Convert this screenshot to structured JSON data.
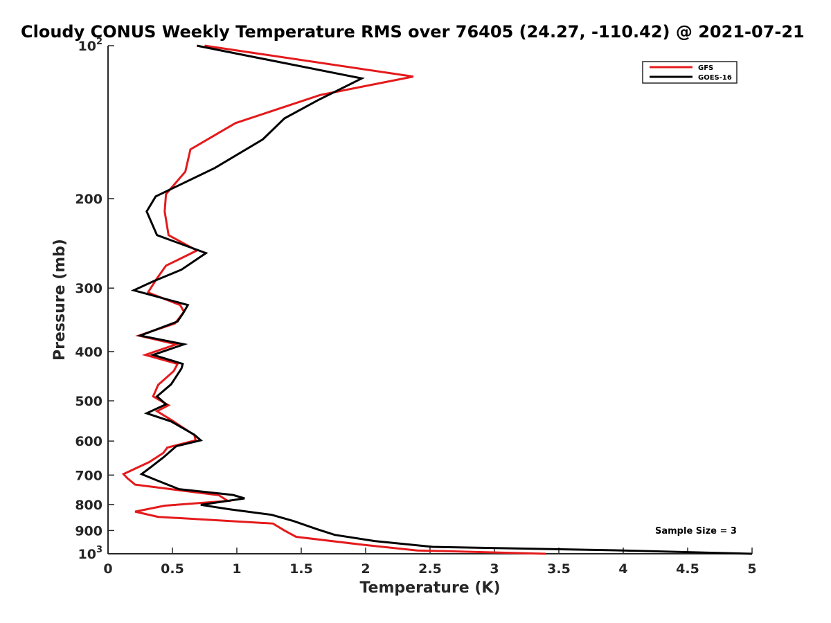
{
  "chart_data": {
    "type": "line",
    "title": "Cloudy CONUS Weekly Temperature RMS over 76405 (24.27, -110.42) @ 2021-07-21",
    "xlabel": "Temperature (K)",
    "ylabel": "Pressure (mb)",
    "xlim": [
      0,
      5
    ],
    "ylim": [
      100,
      1000
    ],
    "yscale": "log",
    "y_reversed": true,
    "xticks": [
      {
        "value": 0,
        "label": "0"
      },
      {
        "value": 0.5,
        "label": "0.5"
      },
      {
        "value": 1,
        "label": "1"
      },
      {
        "value": 1.5,
        "label": "1.5"
      },
      {
        "value": 2,
        "label": "2"
      },
      {
        "value": 2.5,
        "label": "2.5"
      },
      {
        "value": 3,
        "label": "3"
      },
      {
        "value": 3.5,
        "label": "3.5"
      },
      {
        "value": 4,
        "label": "4"
      },
      {
        "value": 4.5,
        "label": "4.5"
      },
      {
        "value": 5,
        "label": "5"
      }
    ],
    "yticks": [
      {
        "value": 100,
        "label": "10",
        "sup": "2"
      },
      {
        "value": 200,
        "label": "200",
        "sup": ""
      },
      {
        "value": 300,
        "label": "300",
        "sup": ""
      },
      {
        "value": 400,
        "label": "400",
        "sup": ""
      },
      {
        "value": 500,
        "label": "500",
        "sup": ""
      },
      {
        "value": 600,
        "label": "600",
        "sup": ""
      },
      {
        "value": 700,
        "label": "700",
        "sup": ""
      },
      {
        "value": 800,
        "label": "800",
        "sup": ""
      },
      {
        "value": 900,
        "label": "900",
        "sup": ""
      },
      {
        "value": 1000,
        "label": "10",
        "sup": "3"
      }
    ],
    "legend_position": "top-right",
    "annotation": "Sample Size = 3",
    "series": [
      {
        "name": "GFS",
        "color": "#e41a1c",
        "points": [
          [
            0.75,
            100
          ],
          [
            2.37,
            115
          ],
          [
            1.65,
            125
          ],
          [
            0.99,
            142
          ],
          [
            0.64,
            160
          ],
          [
            0.6,
            177
          ],
          [
            0.45,
            196
          ],
          [
            0.44,
            212
          ],
          [
            0.47,
            236
          ],
          [
            0.69,
            253
          ],
          [
            0.45,
            271
          ],
          [
            0.38,
            287
          ],
          [
            0.31,
            306
          ],
          [
            0.56,
            324
          ],
          [
            0.59,
            334
          ],
          [
            0.52,
            352
          ],
          [
            0.24,
            372
          ],
          [
            0.53,
            387
          ],
          [
            0.29,
            406
          ],
          [
            0.54,
            423
          ],
          [
            0.51,
            437
          ],
          [
            0.39,
            465
          ],
          [
            0.35,
            490
          ],
          [
            0.47,
            510
          ],
          [
            0.38,
            524
          ],
          [
            0.5,
            547
          ],
          [
            0.67,
            584
          ],
          [
            0.68,
            598
          ],
          [
            0.46,
            618
          ],
          [
            0.43,
            633
          ],
          [
            0.32,
            660
          ],
          [
            0.12,
            697
          ],
          [
            0.15,
            710
          ],
          [
            0.21,
            731
          ],
          [
            0.86,
            767
          ],
          [
            0.93,
            787
          ],
          [
            0.44,
            804
          ],
          [
            0.21,
            826
          ],
          [
            0.39,
            846
          ],
          [
            1.28,
            872
          ],
          [
            1.37,
            900
          ],
          [
            1.46,
            926
          ],
          [
            1.98,
            960
          ],
          [
            2.4,
            985
          ],
          [
            3.4,
            1000
          ]
        ]
      },
      {
        "name": "GOES-16",
        "color": "#000000",
        "points": [
          [
            0.69,
            100
          ],
          [
            1.97,
            116
          ],
          [
            1.63,
            128
          ],
          [
            1.37,
            139
          ],
          [
            1.2,
            153
          ],
          [
            0.83,
            174
          ],
          [
            0.37,
            198
          ],
          [
            0.3,
            212
          ],
          [
            0.38,
            236
          ],
          [
            0.76,
            256
          ],
          [
            0.57,
            276
          ],
          [
            0.35,
            291
          ],
          [
            0.2,
            303
          ],
          [
            0.62,
            324
          ],
          [
            0.58,
            337
          ],
          [
            0.54,
            349
          ],
          [
            0.25,
            372
          ],
          [
            0.59,
            387
          ],
          [
            0.35,
            406
          ],
          [
            0.58,
            423
          ],
          [
            0.57,
            432
          ],
          [
            0.49,
            464
          ],
          [
            0.38,
            490
          ],
          [
            0.45,
            508
          ],
          [
            0.3,
            529
          ],
          [
            0.49,
            549
          ],
          [
            0.67,
            583
          ],
          [
            0.72,
            598
          ],
          [
            0.53,
            614
          ],
          [
            0.43,
            646
          ],
          [
            0.33,
            676
          ],
          [
            0.26,
            697
          ],
          [
            0.38,
            717
          ],
          [
            0.55,
            746
          ],
          [
            0.97,
            766
          ],
          [
            1.06,
            778
          ],
          [
            0.72,
            801
          ],
          [
            0.94,
            817
          ],
          [
            1.27,
            838
          ],
          [
            1.44,
            862
          ],
          [
            1.62,
            894
          ],
          [
            1.76,
            918
          ],
          [
            2.07,
            944
          ],
          [
            2.52,
            969
          ],
          [
            4.0,
            985
          ],
          [
            5.0,
            1000
          ]
        ]
      }
    ]
  }
}
